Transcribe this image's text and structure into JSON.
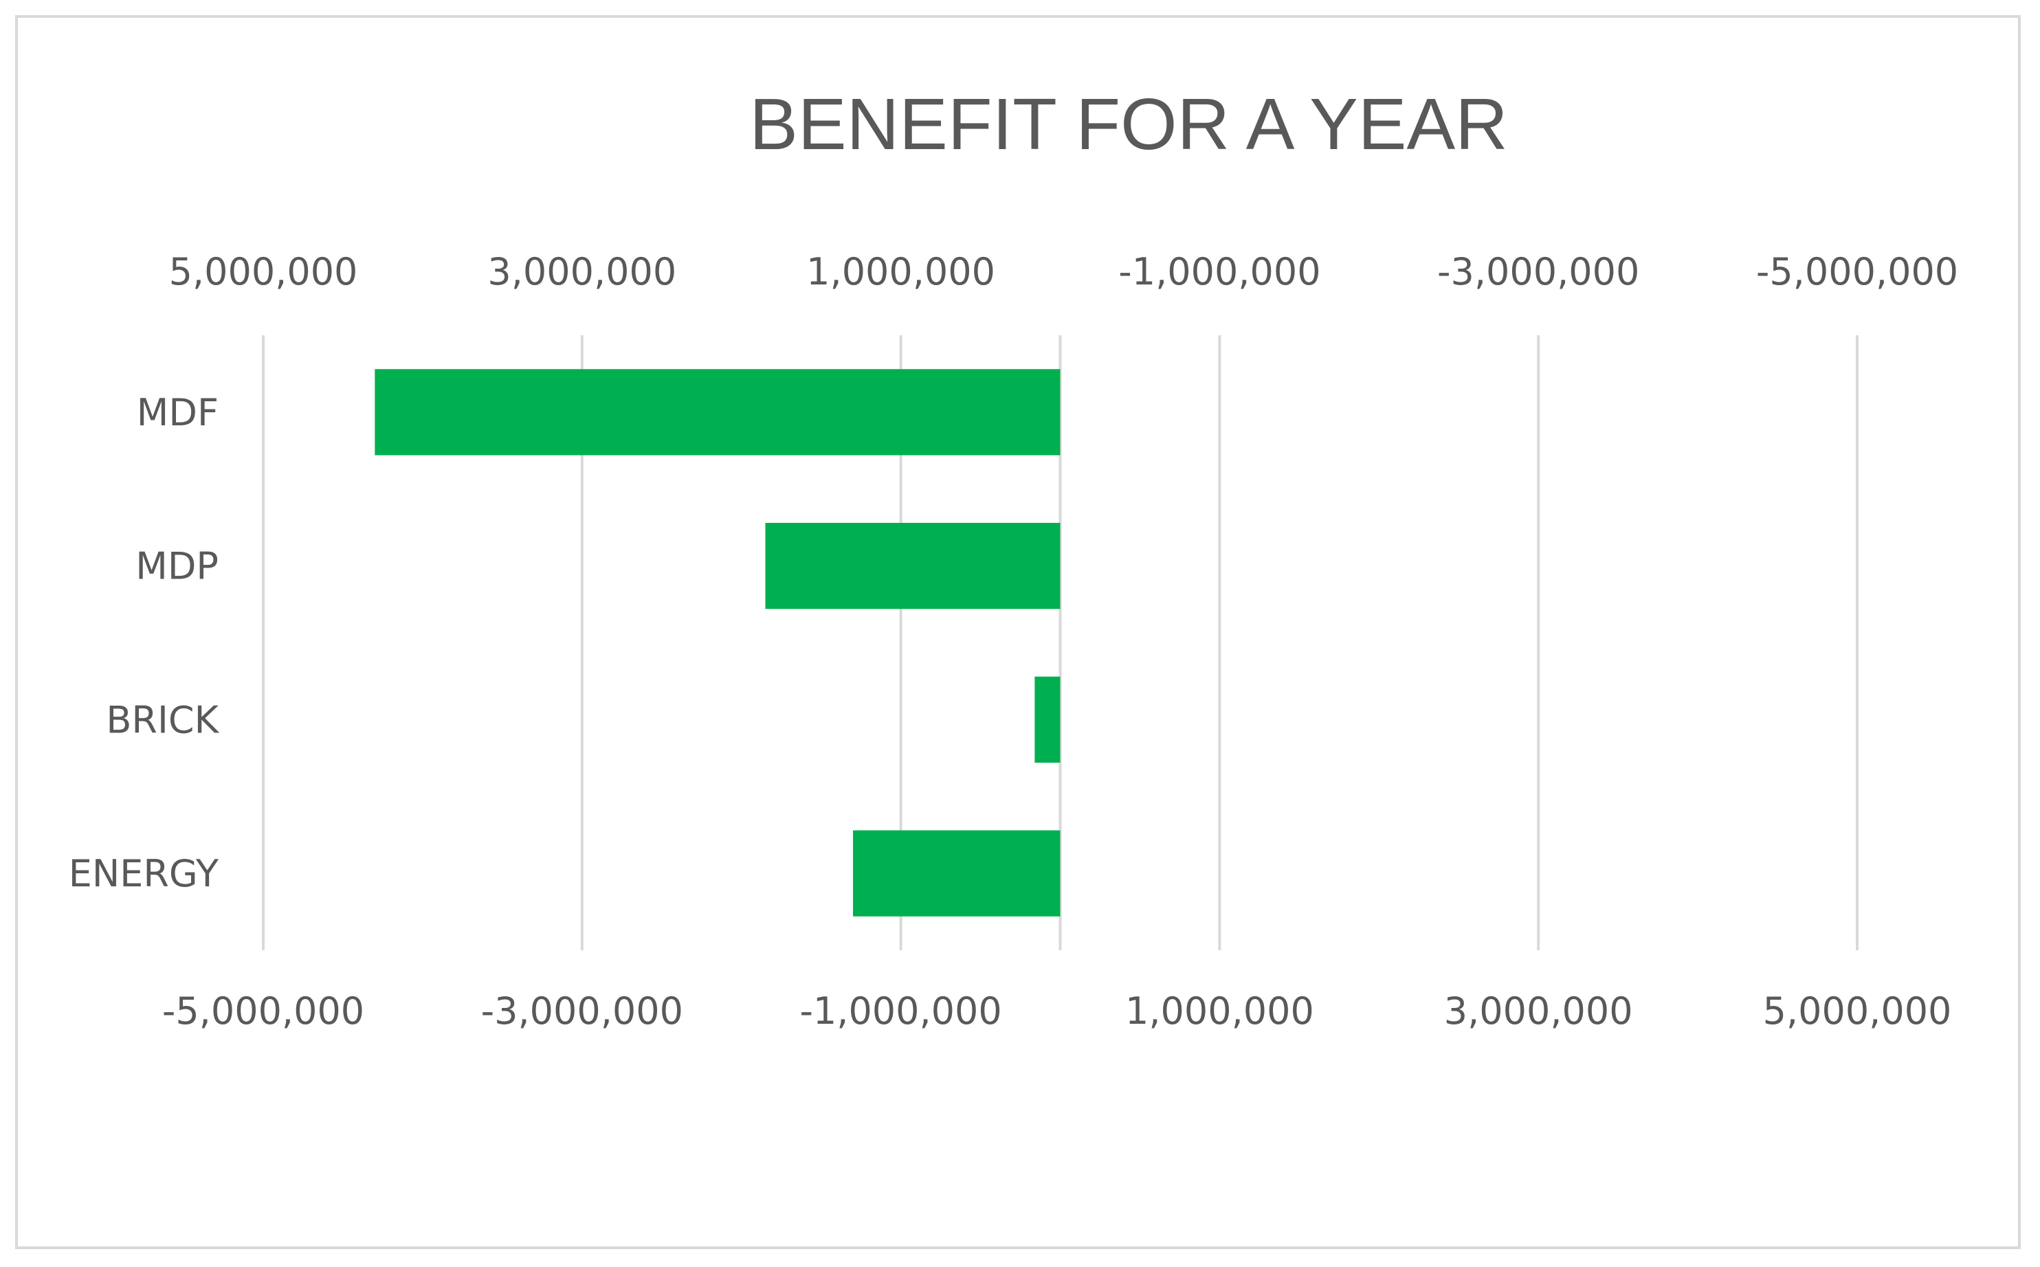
{
  "chart_data": {
    "type": "bar",
    "orientation": "horizontal",
    "title": "BENEFIT FOR A YEAR",
    "xlabel": "",
    "ylabel": "",
    "categories": [
      "MDF",
      "MDP",
      "BRICK",
      "ENERGY"
    ],
    "series": [
      {
        "values": [
          -4300000,
          -1850000,
          -160000,
          -1300000
        ],
        "color": "#00b050"
      }
    ],
    "xlim": [
      -5000000,
      5000000
    ],
    "grid": true,
    "legend": "none",
    "axes": {
      "bottom": {
        "ticks": [
          -5000000,
          -3000000,
          -1000000,
          1000000,
          3000000,
          5000000
        ],
        "tick_labels": [
          "-5,000,000",
          "-3,000,000",
          "-1,000,000",
          "1,000,000",
          "3,000,000",
          "5,000,000"
        ]
      },
      "top": {
        "reversed": true,
        "ticks": [
          -5000000,
          -3000000,
          -1000000,
          1000000,
          3000000,
          5000000
        ],
        "tick_labels": [
          "5,000,000",
          "3,000,000",
          "1,000,000",
          "-1,000,000",
          "-3,000,000",
          "-5,000,000"
        ]
      }
    }
  },
  "colors": {
    "bar": "#00b050",
    "text": "#595959",
    "grid": "#d9d9d9",
    "border": "#d9d9d9"
  }
}
